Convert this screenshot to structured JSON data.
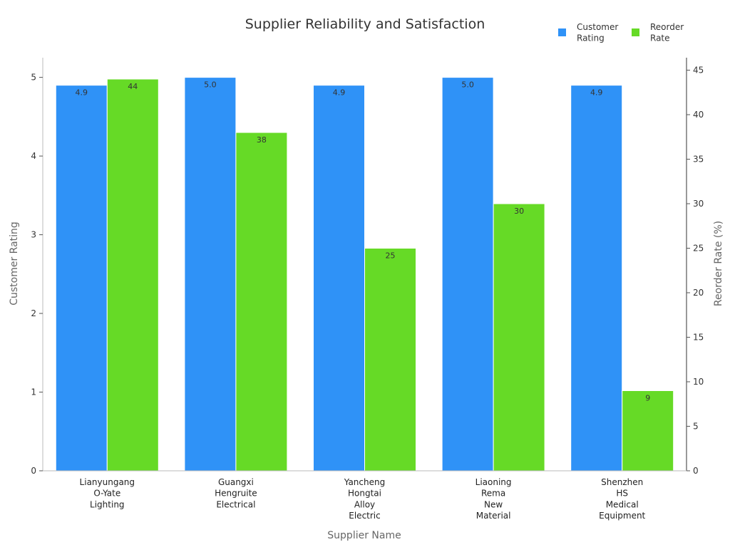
{
  "chart_data": {
    "type": "bar",
    "title": "Supplier Reliability and Satisfaction",
    "xlabel": "Supplier Name",
    "ylabel": "Customer Rating",
    "y2label": "Reorder Rate (%)",
    "categories": [
      [
        "Lianyungang",
        "O-Yate",
        "Lighting"
      ],
      [
        "Guangxi",
        "Hengruite",
        "Electrical"
      ],
      [
        "Yancheng",
        "Hongtai",
        "Alloy",
        "Electric"
      ],
      [
        "Liaoning",
        "Rema",
        "New",
        "Material"
      ],
      [
        "Shenzhen",
        "HS",
        "Medical",
        "Equipment"
      ]
    ],
    "series": [
      {
        "name": [
          "Customer",
          "Rating"
        ],
        "axis": "left",
        "color": "#2f92f7",
        "values": [
          4.9,
          5.0,
          4.9,
          5.0,
          4.9
        ],
        "labels": [
          "4.9",
          "5.0",
          "4.9",
          "5.0",
          "4.9"
        ]
      },
      {
        "name": [
          "Reorder",
          "Rate"
        ],
        "axis": "right",
        "color": "#66da26",
        "values": [
          44,
          38,
          25,
          30,
          9
        ],
        "labels": [
          "44",
          "38",
          "25",
          "30",
          "9"
        ]
      }
    ],
    "ylim": [
      0,
      5.25
    ],
    "yticks": [
      "0",
      "1",
      "2",
      "3",
      "4",
      "5"
    ],
    "y2lim": [
      0,
      46.4
    ],
    "y2ticks": [
      "0",
      "5",
      "10",
      "15",
      "20",
      "25",
      "30",
      "35",
      "40",
      "45"
    ],
    "legend_position": "top-right",
    "grid": false
  }
}
